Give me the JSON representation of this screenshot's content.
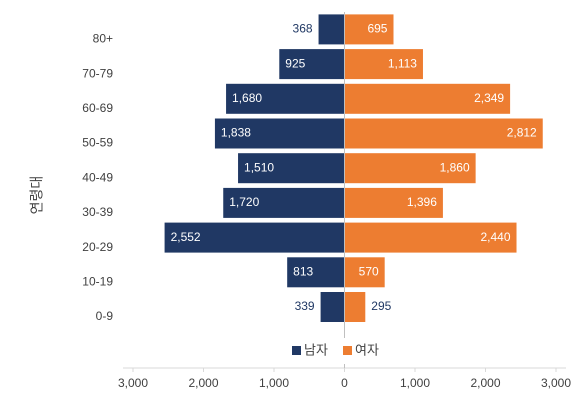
{
  "chart_data": {
    "type": "bar",
    "orientation": "horizontal",
    "layout": "pyramid",
    "ylabel": "연령대",
    "categories": [
      "0-9",
      "10-19",
      "20-29",
      "30-39",
      "40-49",
      "50-59",
      "60-69",
      "70-79",
      "80+"
    ],
    "series": [
      {
        "name": "남자",
        "color": "#203864",
        "values": [
          -339,
          -813,
          -2552,
          -1720,
          -1510,
          -1838,
          -1680,
          -925,
          -368
        ],
        "value_labels": [
          "339",
          "813",
          "2,552",
          "1,720",
          "1,510",
          "1,838",
          "1,680",
          "925",
          "368"
        ]
      },
      {
        "name": "여자",
        "color": "#ed7d31",
        "values": [
          295,
          570,
          2440,
          1396,
          1860,
          2812,
          2349,
          1113,
          695
        ],
        "value_labels": [
          "295",
          "570",
          "2,440",
          "1,396",
          "1,860",
          "2,812",
          "2,349",
          "1,113",
          "695"
        ]
      }
    ],
    "xlim": [
      -3000,
      3000
    ],
    "xticks": [
      {
        "value": -3000,
        "label": "3,000"
      },
      {
        "value": -2000,
        "label": "2,000"
      },
      {
        "value": -1000,
        "label": "1,000"
      },
      0,
      {
        "value": 1000,
        "label": "1,000"
      },
      {
        "value": 2000,
        "label": "2,000"
      },
      {
        "value": 3000,
        "label": "3,000"
      }
    ],
    "legend": "bottom"
  }
}
